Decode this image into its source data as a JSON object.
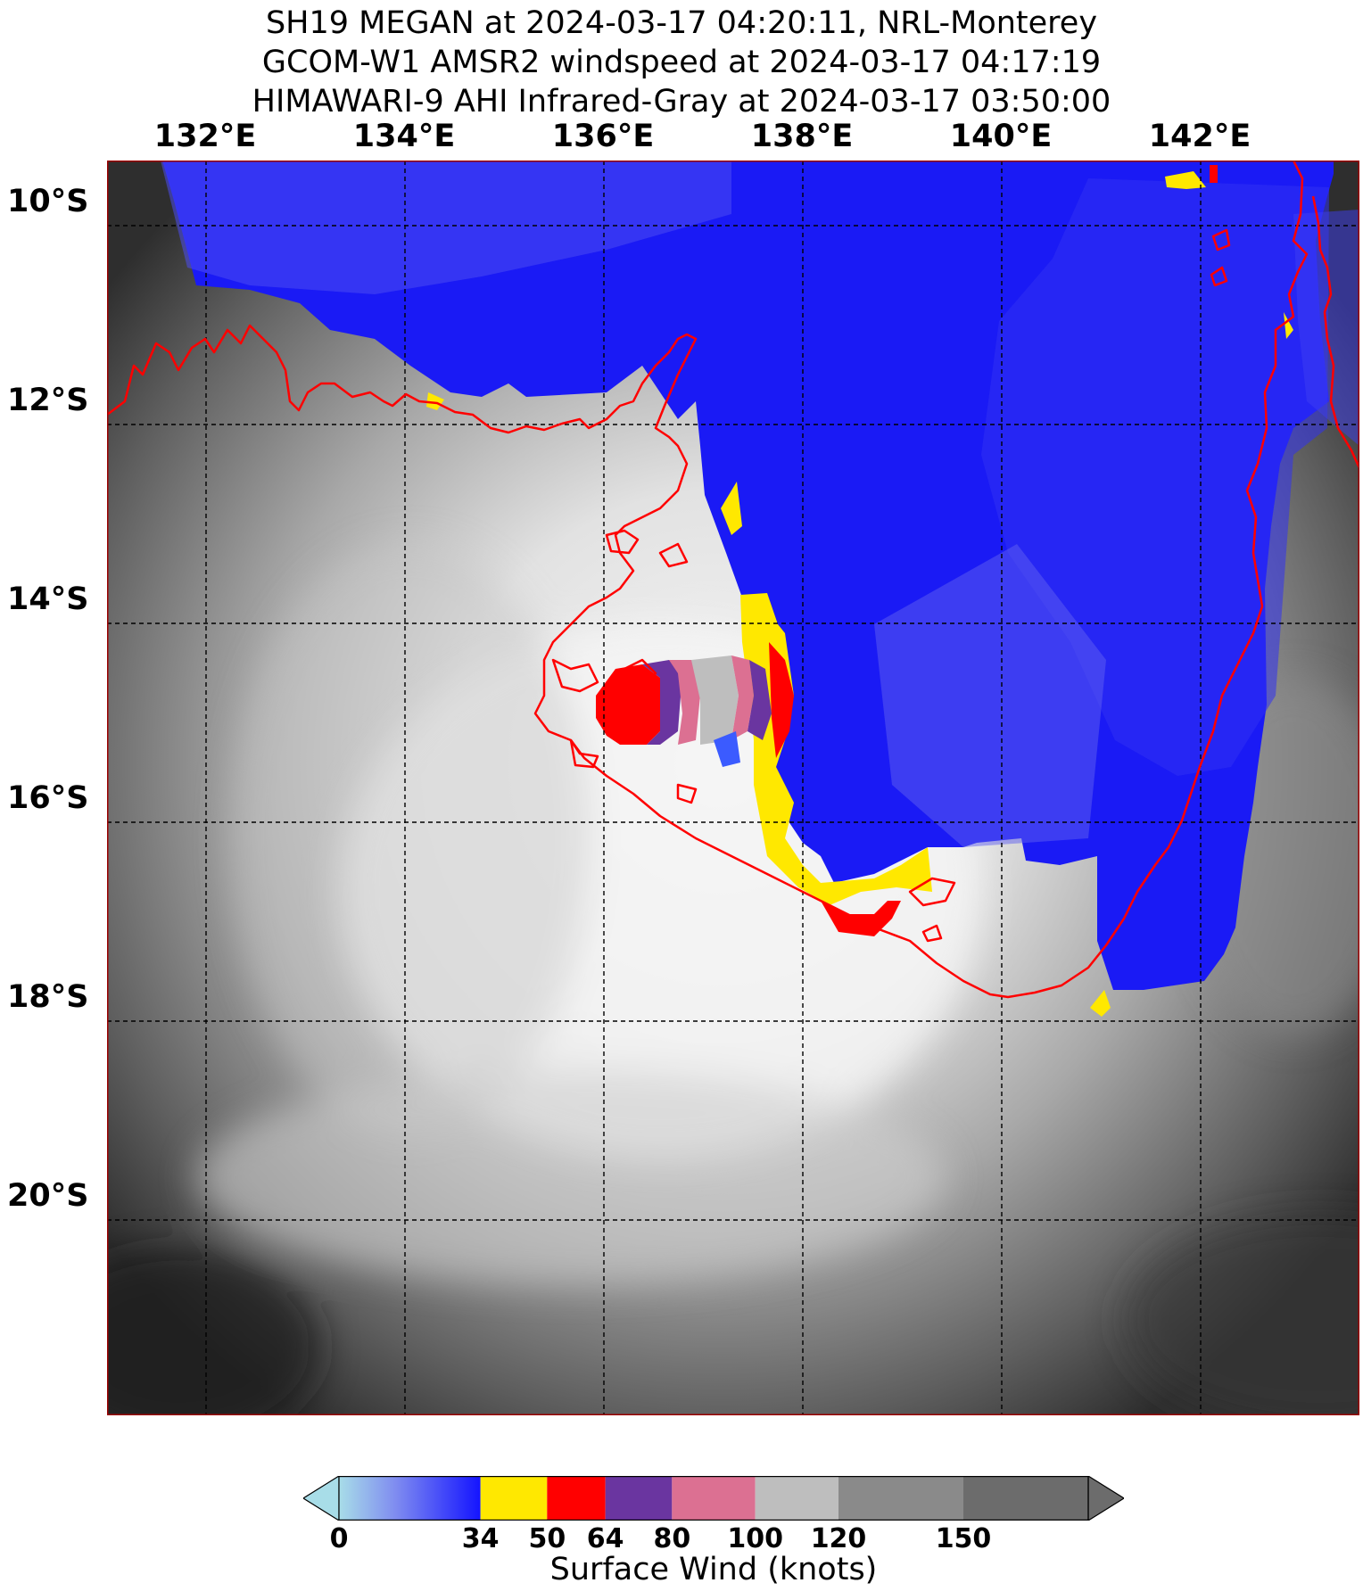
{
  "title": {
    "line1": "SH19 MEGAN at 2024-03-17 04:20:11, NRL-Monterey",
    "line2": "GCOM-W1 AMSR2 windspeed at 2024-03-17 04:17:19",
    "line3": "HIMAWARI-9 AHI Infrared-Gray at 2024-03-17 03:50:00"
  },
  "map": {
    "lon_labels": [
      "132°E",
      "134°E",
      "136°E",
      "138°E",
      "140°E",
      "142°E"
    ],
    "lat_labels": [
      "10°S",
      "12°S",
      "14°S",
      "16°S",
      "18°S",
      "20°S"
    ],
    "lon_range": [
      131.0,
      143.6
    ],
    "lat_range": [
      -9.35,
      -21.9
    ],
    "grid_lons": [
      132,
      134,
      136,
      138,
      140,
      142
    ],
    "grid_lats": [
      -10,
      -12,
      -14,
      -16,
      -18,
      -20
    ],
    "coastline_color": "#ff0000",
    "storm_center": {
      "lon": 136.8,
      "lat": -14.9
    }
  },
  "colorbar": {
    "label": "Surface Wind (knots)",
    "ticks": [
      "0",
      "34",
      "50",
      "64",
      "80",
      "100",
      "120",
      "150"
    ],
    "tick_values": [
      0,
      34,
      50,
      64,
      80,
      100,
      120,
      150
    ],
    "range": [
      0,
      180
    ],
    "segments": [
      {
        "from": 34,
        "to": 50,
        "color": "#ffe800"
      },
      {
        "from": 50,
        "to": 64,
        "color": "#ff0000"
      },
      {
        "from": 64,
        "to": 80,
        "color": "#6a35a0"
      },
      {
        "from": 80,
        "to": 100,
        "color": "#dc7092"
      },
      {
        "from": 100,
        "to": 120,
        "color": "#bebebe"
      },
      {
        "from": 120,
        "to": 150,
        "color": "#8a8a8a"
      },
      {
        "from": 150,
        "to": 180,
        "color": "#6c6c6c"
      }
    ]
  }
}
